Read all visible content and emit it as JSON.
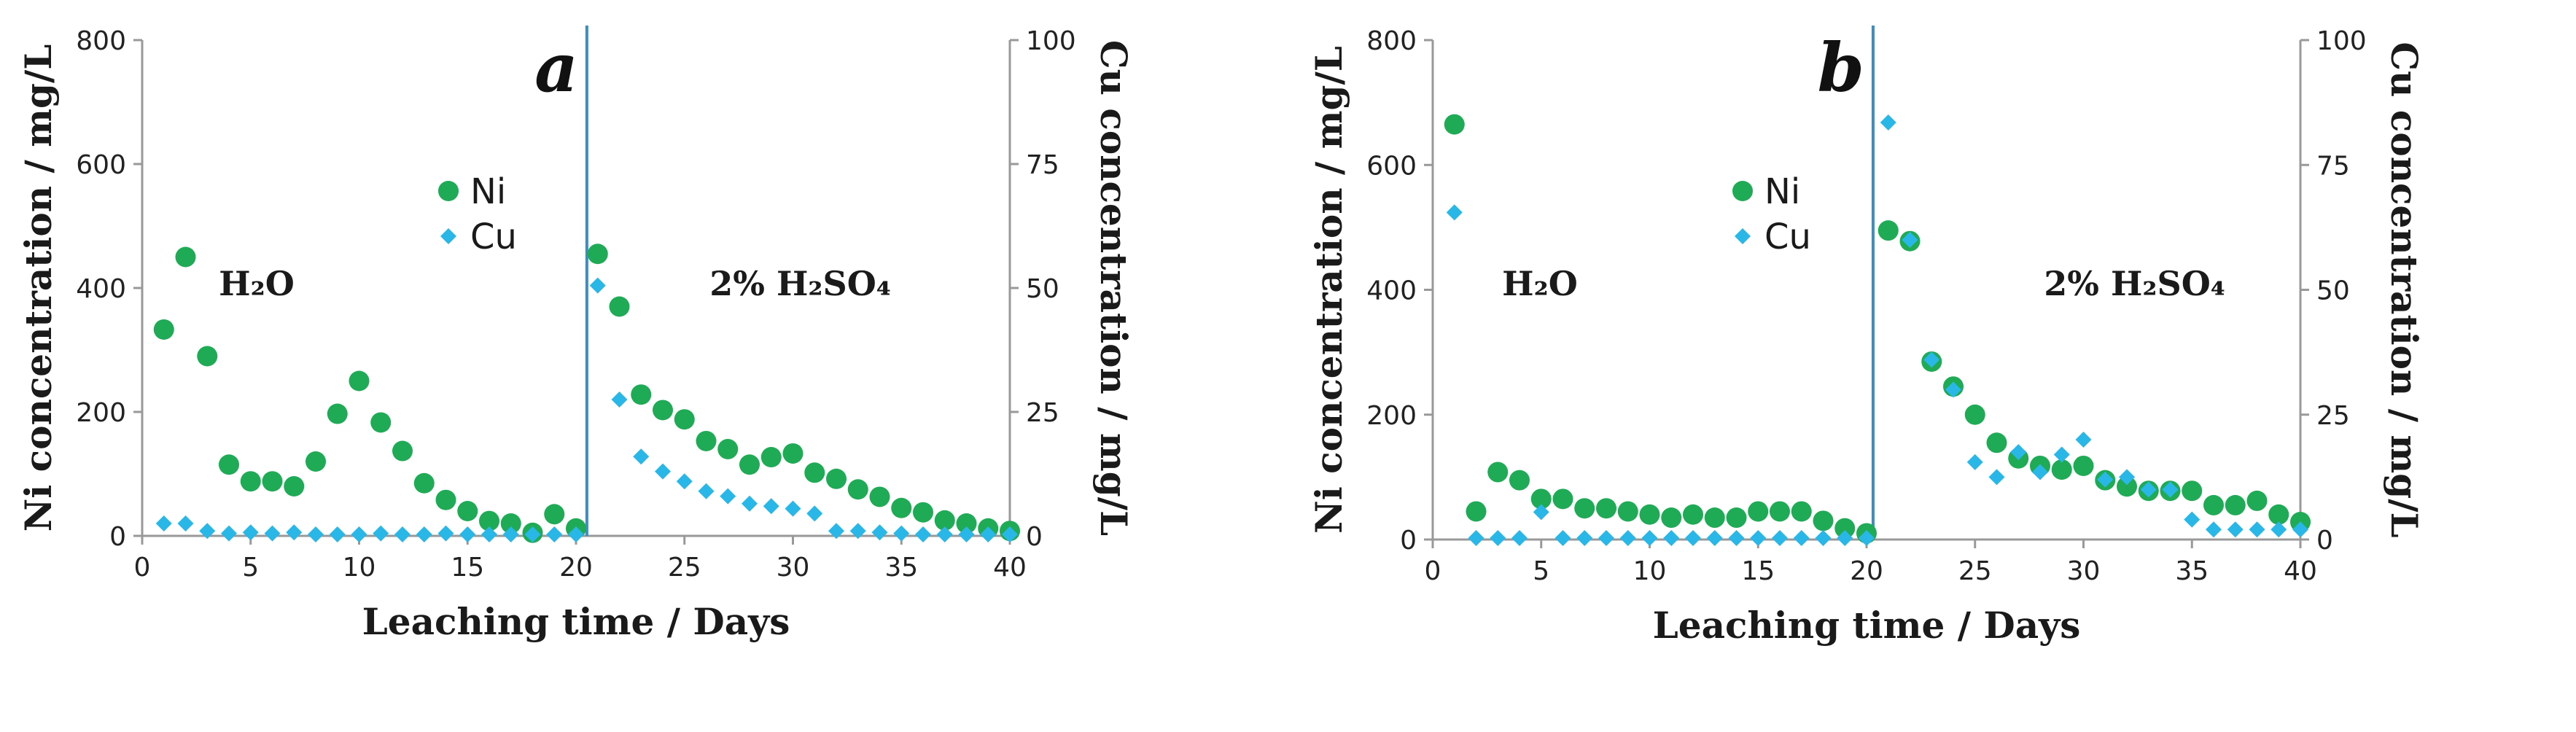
{
  "chart_data": [
    {
      "panel": "a",
      "type": "scatter",
      "xlabel": "Leaching time / Days",
      "ylabel_left": "Ni concentration / mg/L",
      "ylabel_right": "Cu concentration / mg/L",
      "xlim": [
        0,
        40
      ],
      "ylim_left": [
        0,
        800
      ],
      "ylim_right": [
        0,
        100
      ],
      "xticks": [
        "0",
        "5",
        "10",
        "15",
        "20",
        "25",
        "30",
        "35",
        "40"
      ],
      "yticks_left": [
        "0",
        "200",
        "400",
        "600",
        "800"
      ],
      "yticks_right": [
        "0",
        "25",
        "50",
        "75",
        "100"
      ],
      "divider_x": 20.5,
      "annotations": {
        "left": "H₂O",
        "right": "2% H₂SO₄"
      },
      "legend": [
        "Ni",
        "Cu"
      ],
      "series": [
        {
          "name": "Ni",
          "axis": "left",
          "marker": "circle",
          "color": "#1faa55",
          "x": [
            1,
            2,
            3,
            4,
            5,
            6,
            7,
            8,
            9,
            10,
            11,
            12,
            13,
            14,
            15,
            16,
            17,
            18,
            19,
            20,
            21,
            22,
            23,
            24,
            25,
            26,
            27,
            28,
            29,
            30,
            31,
            32,
            33,
            34,
            35,
            36,
            37,
            38,
            39,
            40
          ],
          "y": [
            333,
            450,
            290,
            115,
            88,
            88,
            80,
            120,
            197,
            250,
            183,
            137,
            85,
            58,
            40,
            24,
            20,
            5,
            35,
            12,
            455,
            370,
            228,
            203,
            188,
            153,
            140,
            115,
            127,
            133,
            102,
            92,
            75,
            63,
            45,
            38,
            25,
            20,
            12,
            8
          ]
        },
        {
          "name": "Cu",
          "axis": "right",
          "marker": "diamond",
          "color": "#29b7e8",
          "x": [
            1,
            2,
            3,
            4,
            5,
            6,
            7,
            8,
            9,
            10,
            11,
            12,
            13,
            14,
            15,
            16,
            17,
            18,
            19,
            20,
            21,
            22,
            23,
            24,
            25,
            26,
            27,
            28,
            29,
            30,
            31,
            32,
            33,
            34,
            35,
            36,
            37,
            38,
            39,
            40
          ],
          "y": [
            2.5,
            2.5,
            1,
            0.5,
            0.7,
            0.5,
            0.7,
            0.3,
            0.3,
            0.3,
            0.5,
            0.3,
            0.3,
            0.5,
            0.3,
            0.3,
            0.3,
            0.3,
            0.3,
            0.3,
            50.5,
            27.5,
            16,
            13,
            11,
            9,
            8,
            6.5,
            6,
            5.5,
            4.5,
            1,
            1,
            0.7,
            0.5,
            0.3,
            0.3,
            0.3,
            0.3,
            0.3
          ]
        }
      ]
    },
    {
      "panel": "b",
      "type": "scatter",
      "xlabel": "Leaching time / Days",
      "ylabel_left": "Ni concentration / mg/L",
      "ylabel_right": "Cu concentration / mg/L",
      "xlim": [
        0,
        40
      ],
      "ylim_left": [
        0,
        800
      ],
      "ylim_right": [
        0,
        100
      ],
      "xticks": [
        "0",
        "5",
        "10",
        "15",
        "20",
        "25",
        "30",
        "35",
        "40"
      ],
      "yticks_left": [
        "0",
        "200",
        "400",
        "600",
        "800"
      ],
      "yticks_right": [
        "0",
        "25",
        "50",
        "75",
        "100"
      ],
      "divider_x": 20.3,
      "annotations": {
        "left": "H₂O",
        "right": "2% H₂SO₄"
      },
      "legend": [
        "Ni",
        "Cu"
      ],
      "series": [
        {
          "name": "Ni",
          "axis": "left",
          "marker": "circle",
          "color": "#1faa55",
          "x": [
            1,
            2,
            3,
            4,
            5,
            6,
            7,
            8,
            9,
            10,
            11,
            12,
            13,
            14,
            15,
            16,
            17,
            18,
            19,
            20,
            21,
            22,
            23,
            24,
            25,
            26,
            27,
            28,
            29,
            30,
            31,
            32,
            33,
            34,
            35,
            36,
            37,
            38,
            39,
            40
          ],
          "y": [
            665,
            45,
            108,
            95,
            65,
            65,
            50,
            50,
            45,
            40,
            35,
            40,
            35,
            35,
            45,
            45,
            45,
            30,
            18,
            10,
            495,
            478,
            285,
            245,
            200,
            155,
            130,
            118,
            112,
            118,
            95,
            85,
            78,
            78,
            78,
            55,
            55,
            62,
            40,
            28
          ]
        },
        {
          "name": "Cu",
          "axis": "right",
          "marker": "diamond",
          "color": "#29b7e8",
          "x": [
            1,
            2,
            3,
            4,
            5,
            6,
            7,
            8,
            9,
            10,
            11,
            12,
            13,
            14,
            15,
            16,
            17,
            18,
            19,
            20,
            21,
            22,
            23,
            24,
            25,
            26,
            27,
            28,
            29,
            30,
            31,
            32,
            33,
            34,
            35,
            36,
            37,
            38,
            39,
            40
          ],
          "y": [
            65.5,
            0.3,
            0.3,
            0.3,
            5.5,
            0.3,
            0.3,
            0.3,
            0.3,
            0.3,
            0.3,
            0.3,
            0.3,
            0.3,
            0.3,
            0.3,
            0.3,
            0.3,
            0.3,
            0.3,
            83.5,
            60,
            36,
            30,
            15.5,
            12.5,
            17.5,
            13.5,
            17,
            20,
            12,
            12.5,
            10,
            10,
            4,
            2,
            2,
            2,
            2,
            2
          ]
        }
      ]
    }
  ]
}
